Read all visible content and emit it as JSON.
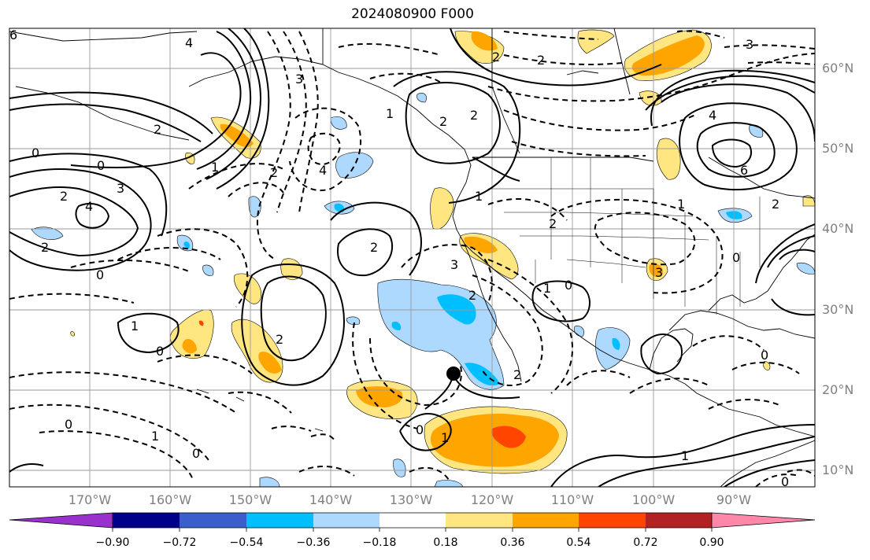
{
  "title": "2024080900 F000",
  "latitude_labels": [
    "60°N",
    "50°N",
    "40°N",
    "30°N",
    "20°N",
    "10°N"
  ],
  "longitude_labels": [
    "170°W",
    "160°W",
    "150°W",
    "140°W",
    "130°W",
    "120°W",
    "110°W",
    "100°W",
    "90°W"
  ],
  "colorbar": {
    "ticks": [
      "−0.90",
      "−0.72",
      "−0.54",
      "−0.36",
      "−0.18",
      "0.18",
      "0.36",
      "0.54",
      "0.72",
      "0.90"
    ],
    "colors": [
      "#9932cc",
      "#00008b",
      "#3a5fcd",
      "#00bfff",
      "#add8ff",
      "#ffffff",
      "#ffe680",
      "#ffa500",
      "#ff4500",
      "#b22222",
      "#ff88aa"
    ]
  },
  "contour_labels": {
    "positive": [
      "6",
      "4",
      "2",
      "2",
      "1",
      "0",
      "2",
      "3",
      "4",
      "2",
      "2",
      "0",
      "1",
      "2",
      "2",
      "1",
      "2",
      "2",
      "0",
      "0",
      "1",
      "6",
      "4",
      "2",
      "0",
      "1",
      "0"
    ],
    "negative": [
      "3",
      "4",
      "2",
      "1",
      "2",
      "3",
      "2",
      "0",
      "1",
      "2",
      "2",
      "0",
      "1",
      "2",
      "3",
      "0",
      "1",
      "3"
    ]
  },
  "marker": "storm-center-dot"
}
